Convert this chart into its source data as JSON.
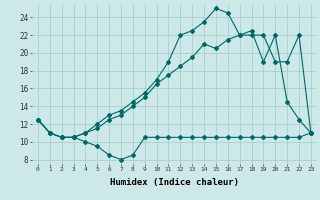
{
  "xlabel": "Humidex (Indice chaleur)",
  "bg_color": "#cce8e8",
  "grid_color": "#aacece",
  "line_color": "#006868",
  "xlim": [
    -0.5,
    23.5
  ],
  "ylim": [
    7.5,
    25.5
  ],
  "xticks": [
    0,
    1,
    2,
    3,
    4,
    5,
    6,
    7,
    8,
    9,
    10,
    11,
    12,
    13,
    14,
    15,
    16,
    17,
    18,
    19,
    20,
    21,
    22,
    23
  ],
  "yticks": [
    8,
    10,
    12,
    14,
    16,
    18,
    20,
    22,
    24
  ],
  "line1_x": [
    0,
    1,
    2,
    3,
    4,
    5,
    6,
    7,
    8,
    9,
    10,
    11,
    12,
    13,
    14,
    15,
    16,
    17,
    18,
    19,
    20,
    21,
    22,
    23
  ],
  "line1_y": [
    12.5,
    11.0,
    10.5,
    10.5,
    10.0,
    9.5,
    8.5,
    8.0,
    8.5,
    10.5,
    10.5,
    10.5,
    10.5,
    10.5,
    10.5,
    10.5,
    10.5,
    10.5,
    10.5,
    10.5,
    10.5,
    10.5,
    10.5,
    11.0
  ],
  "line2_x": [
    0,
    1,
    2,
    3,
    4,
    5,
    6,
    7,
    8,
    9,
    10,
    11,
    12,
    13,
    14,
    15,
    16,
    17,
    18,
    19,
    20,
    21,
    22,
    23
  ],
  "line2_y": [
    12.5,
    11.0,
    10.5,
    10.5,
    11.0,
    11.5,
    12.5,
    13.0,
    14.0,
    15.0,
    16.5,
    17.5,
    18.5,
    19.5,
    21.0,
    20.5,
    21.5,
    22.0,
    22.5,
    19.0,
    22.0,
    14.5,
    12.5,
    11.0
  ],
  "line3_x": [
    0,
    1,
    2,
    3,
    4,
    5,
    6,
    7,
    8,
    9,
    10,
    11,
    12,
    13,
    14,
    15,
    16,
    17,
    18,
    19,
    20,
    21,
    22,
    23
  ],
  "line3_y": [
    12.5,
    11.0,
    10.5,
    10.5,
    11.0,
    12.0,
    13.0,
    13.5,
    14.5,
    15.5,
    17.0,
    19.0,
    22.0,
    22.5,
    23.5,
    25.0,
    24.5,
    22.0,
    22.0,
    22.0,
    19.0,
    19.0,
    22.0,
    11.0
  ],
  "marker": "D",
  "marker_size": 2.0,
  "linewidth": 0.8
}
